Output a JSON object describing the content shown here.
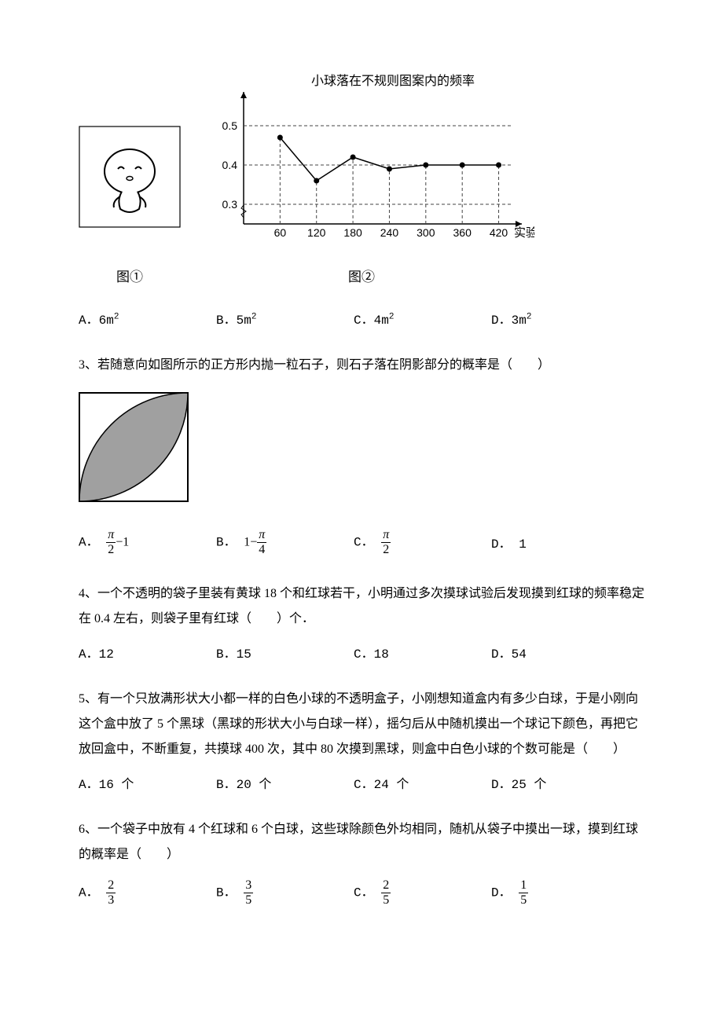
{
  "chart": {
    "title": "小球落在不规则图案内的频率",
    "x_axis_label": "实验次数",
    "x_ticks": [
      60,
      120,
      180,
      240,
      300,
      360,
      420
    ],
    "y_ticks": [
      0.3,
      0.4,
      0.5
    ],
    "points": [
      {
        "x": 60,
        "y": 0.47
      },
      {
        "x": 120,
        "y": 0.36
      },
      {
        "x": 180,
        "y": 0.42
      },
      {
        "x": 240,
        "y": 0.39
      },
      {
        "x": 300,
        "y": 0.4
      },
      {
        "x": 360,
        "y": 0.4
      },
      {
        "x": 420,
        "y": 0.4
      }
    ],
    "axis_color": "#000000",
    "line_color": "#000000",
    "grid_color": "#444444",
    "background_color": "#ffffff",
    "title_fontsize": 16,
    "tick_fontsize": 14
  },
  "figure_captions": {
    "fig1": "图①",
    "fig2": "图②"
  },
  "q2_options": {
    "A": {
      "label": "A．",
      "val": "6m",
      "sup": "2"
    },
    "B": {
      "label": "B．",
      "val": "5m",
      "sup": "2"
    },
    "C": {
      "label": "C．",
      "val": "4m",
      "sup": "2"
    },
    "D": {
      "label": "D．",
      "val": "3m",
      "sup": "2"
    }
  },
  "q3": {
    "text": "3、若随意向如图所示的正方形内抛一粒石子，则石子落在阴影部分的概率是（　　）",
    "shade_color": "#a0a0a0",
    "border_color": "#000000",
    "options": {
      "A": {
        "label": "A．",
        "type": "frac_minus",
        "num": "π",
        "den": "2",
        "tail": "−1"
      },
      "B": {
        "label": "B．",
        "type": "one_minus_frac",
        "lead": "1−",
        "num": "π",
        "den": "4"
      },
      "C": {
        "label": "C．",
        "type": "frac",
        "num": "π",
        "den": "2"
      },
      "D": {
        "label": "D．",
        "type": "plain",
        "val": "1"
      }
    }
  },
  "q4": {
    "text": "4、一个不透明的袋子里装有黄球 18 个和红球若干，小明通过多次摸球试验后发现摸到红球的频率稳定在 0.4 左右，则袋子里有红球（　　）个．",
    "options": {
      "A": "A．12",
      "B": "B．15",
      "C": "C．18",
      "D": "D．54"
    }
  },
  "q5": {
    "text": "5、有一个只放满形状大小都一样的白色小球的不透明盒子，小刚想知道盒内有多少白球，于是小刚向这个盒中放了 5 个黑球（黑球的形状大小与白球一样），摇匀后从中随机摸出一个球记下颜色，再把它放回盒中，不断重复，共摸球 400 次，其中 80 次摸到黑球，则盒中白色小球的个数可能是（　　）",
    "options": {
      "A": "A．16 个",
      "B": "B．20 个",
      "C": "C．24 个",
      "D": "D．25 个"
    }
  },
  "q6": {
    "text": "6、一个袋子中放有 4 个红球和 6 个白球，这些球除颜色外均相同，随机从袋子中摸出一球，摸到红球的概率是（　　）",
    "options": {
      "A": {
        "label": "A．",
        "num": "2",
        "den": "3"
      },
      "B": {
        "label": "B．",
        "num": "3",
        "den": "5"
      },
      "C": {
        "label": "C．",
        "num": "2",
        "den": "5"
      },
      "D": {
        "label": "D．",
        "num": "1",
        "den": "5"
      }
    }
  }
}
